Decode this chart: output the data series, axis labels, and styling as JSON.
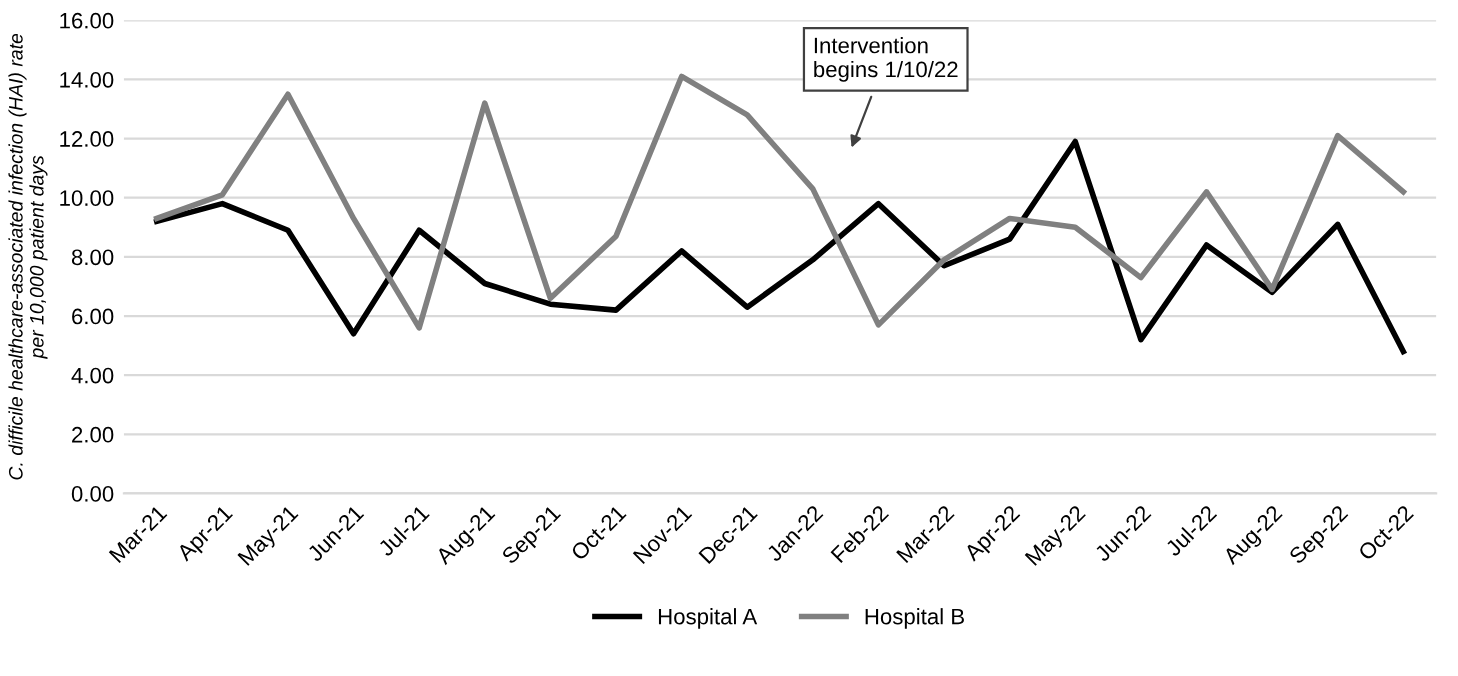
{
  "chart_data": {
    "type": "line",
    "ylabel": "C. difficile healthcare-associated infection (HAI) rate\nper 10,000 patient days",
    "categories": [
      "Mar-21",
      "Apr-21",
      "May-21",
      "Jun-21",
      "Jul-21",
      "Aug-21",
      "Sep-21",
      "Oct-21",
      "Nov-21",
      "Dec-21",
      "Jan-22",
      "Feb-22",
      "Mar-22",
      "Apr-22",
      "May-22",
      "Jun-22",
      "Jul-22",
      "Aug-22",
      "Sep-22",
      "Oct-22"
    ],
    "series": [
      {
        "name": "Hospital A",
        "color": "#000000",
        "values": [
          9.2,
          9.8,
          8.9,
          5.4,
          8.9,
          7.1,
          6.4,
          6.2,
          8.2,
          6.3,
          7.9,
          9.8,
          7.7,
          8.6,
          11.9,
          5.2,
          8.4,
          6.8,
          9.1,
          4.8
        ]
      },
      {
        "name": "Hospital B",
        "color": "#808080",
        "values": [
          9.3,
          10.1,
          13.5,
          9.3,
          5.6,
          13.2,
          6.6,
          8.7,
          14.1,
          12.8,
          10.3,
          5.7,
          7.9,
          9.3,
          9.0,
          7.3,
          10.2,
          6.9,
          12.1,
          10.2
        ]
      }
    ],
    "ylim": [
      0,
      16
    ],
    "yticks": [
      {
        "value": 0,
        "label": "0.00"
      },
      {
        "value": 2,
        "label": "2.00"
      },
      {
        "value": 4,
        "label": "4.00"
      },
      {
        "value": 6,
        "label": "6.00"
      },
      {
        "value": 8,
        "label": "8.00"
      },
      {
        "value": 10,
        "label": "10.00"
      },
      {
        "value": 12,
        "label": "12.00"
      },
      {
        "value": 14,
        "label": "14.00"
      },
      {
        "value": 16,
        "label": "16.00"
      }
    ],
    "grid": "y",
    "legend": "bottom",
    "marker": "none",
    "line_style": "solid",
    "annotations": [
      "Intervention\nbegins 1/10/22"
    ]
  }
}
